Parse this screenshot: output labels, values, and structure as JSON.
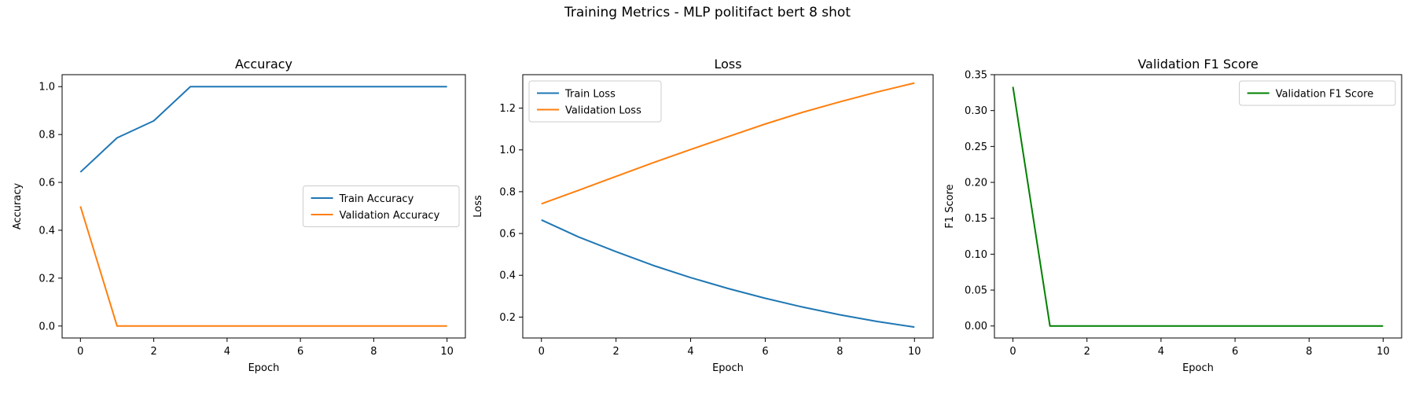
{
  "suptitle": "Training Metrics - MLP politifact bert 8 shot",
  "chart_data": [
    {
      "type": "line",
      "title": "Accuracy",
      "xlabel": "Epoch",
      "ylabel": "Accuracy",
      "xlim": [
        -0.5,
        10.5
      ],
      "ylim": [
        -0.05,
        1.05
      ],
      "xticks": [
        0,
        2,
        4,
        6,
        8,
        10
      ],
      "yticks": [
        0.0,
        0.2,
        0.4,
        0.6,
        0.8,
        1.0
      ],
      "ytick_labels": [
        "0.0",
        "0.2",
        "0.4",
        "0.6",
        "0.8",
        "1.0"
      ],
      "grid": false,
      "legend_position": "center-right",
      "x": [
        0,
        1,
        2,
        3,
        4,
        5,
        6,
        7,
        8,
        9,
        10
      ],
      "series": [
        {
          "name": "Train Accuracy",
          "color": "#1f77b4",
          "values": [
            0.643,
            0.786,
            0.857,
            1.0,
            1.0,
            1.0,
            1.0,
            1.0,
            1.0,
            1.0,
            1.0
          ]
        },
        {
          "name": "Validation Accuracy",
          "color": "#ff7f0e",
          "values": [
            0.5,
            0.0,
            0.0,
            0.0,
            0.0,
            0.0,
            0.0,
            0.0,
            0.0,
            0.0,
            0.0
          ]
        }
      ]
    },
    {
      "type": "line",
      "title": "Loss",
      "xlabel": "Epoch",
      "ylabel": "Loss",
      "xlim": [
        -0.5,
        10.5
      ],
      "ylim": [
        0.1,
        1.36
      ],
      "xticks": [
        0,
        2,
        4,
        6,
        8,
        10
      ],
      "yticks": [
        0.2,
        0.4,
        0.6,
        0.8,
        1.0,
        1.2
      ],
      "ytick_labels": [
        "0.2",
        "0.4",
        "0.6",
        "0.8",
        "1.0",
        "1.2"
      ],
      "grid": false,
      "legend_position": "upper-left",
      "x": [
        0,
        1,
        2,
        3,
        4,
        5,
        6,
        7,
        8,
        9,
        10
      ],
      "series": [
        {
          "name": "Train Loss",
          "color": "#1f77b4",
          "values": [
            0.665,
            0.583,
            0.513,
            0.447,
            0.389,
            0.337,
            0.29,
            0.248,
            0.211,
            0.179,
            0.152
          ]
        },
        {
          "name": "Validation Loss",
          "color": "#ff7f0e",
          "values": [
            0.742,
            0.807,
            0.873,
            0.939,
            1.002,
            1.063,
            1.124,
            1.18,
            1.23,
            1.277,
            1.32
          ]
        }
      ]
    },
    {
      "type": "line",
      "title": "Validation F1 Score",
      "xlabel": "Epoch",
      "ylabel": "F1 Score",
      "xlim": [
        -0.5,
        10.5
      ],
      "ylim": [
        -0.0167,
        0.35
      ],
      "xticks": [
        0,
        2,
        4,
        6,
        8,
        10
      ],
      "yticks": [
        0.0,
        0.05,
        0.1,
        0.15,
        0.2,
        0.25,
        0.3,
        0.35
      ],
      "ytick_labels": [
        "0.00",
        "0.05",
        "0.10",
        "0.15",
        "0.20",
        "0.25",
        "0.30",
        "0.35"
      ],
      "grid": false,
      "legend_position": "upper-right",
      "x": [
        0,
        1,
        2,
        3,
        4,
        5,
        6,
        7,
        8,
        9,
        10
      ],
      "series": [
        {
          "name": "Validation F1 Score",
          "color": "#008000",
          "values": [
            0.333,
            0.0,
            0.0,
            0.0,
            0.0,
            0.0,
            0.0,
            0.0,
            0.0,
            0.0,
            0.0
          ]
        }
      ]
    }
  ]
}
